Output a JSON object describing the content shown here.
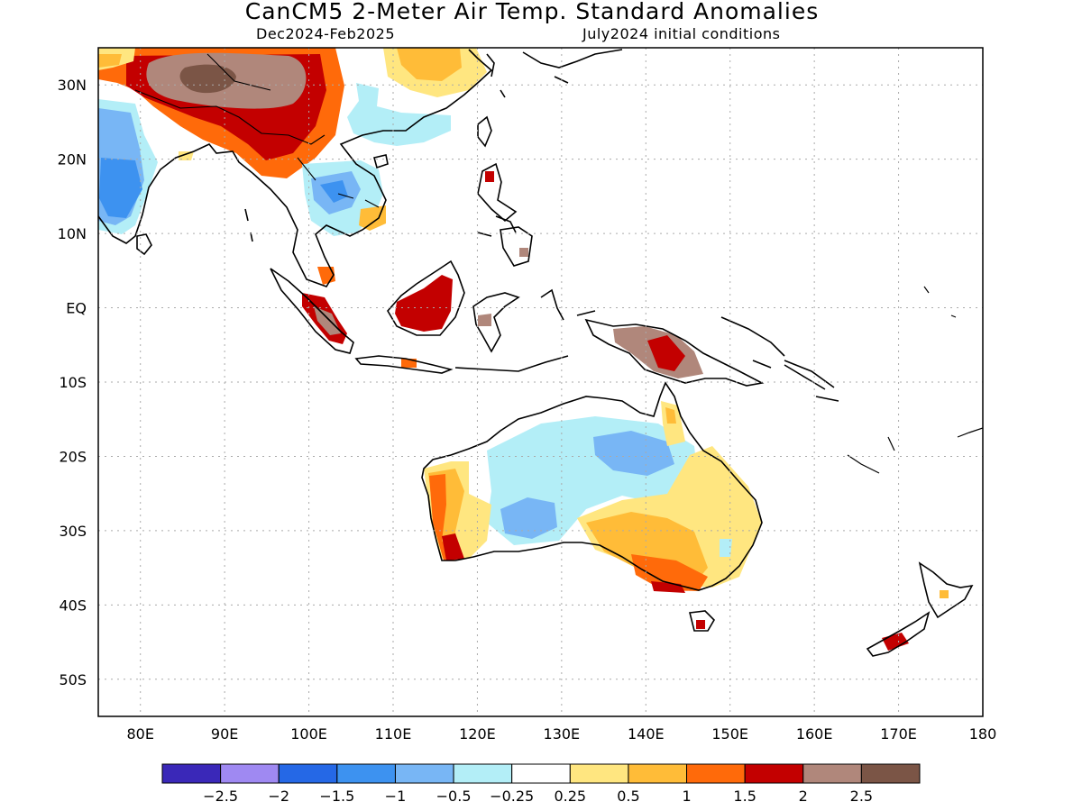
{
  "title": "CanCM5 2-Meter Air Temp. Standard Anomalies",
  "subtitle_left": "Dec2024-Feb2025",
  "subtitle_right": "July2024 initial conditions",
  "map": {
    "lon_range": [
      75,
      180
    ],
    "lat_range": [
      -55,
      35
    ],
    "lon_ticks": [
      {
        "v": 80,
        "label": "80E"
      },
      {
        "v": 90,
        "label": "90E"
      },
      {
        "v": 100,
        "label": "100E"
      },
      {
        "v": 110,
        "label": "110E"
      },
      {
        "v": 120,
        "label": "120E"
      },
      {
        "v": 130,
        "label": "130E"
      },
      {
        "v": 140,
        "label": "140E"
      },
      {
        "v": 150,
        "label": "150E"
      },
      {
        "v": 160,
        "label": "160E"
      },
      {
        "v": 170,
        "label": "170E"
      },
      {
        "v": 180,
        "label": "180"
      }
    ],
    "lat_ticks": [
      {
        "v": 30,
        "label": "30N"
      },
      {
        "v": 20,
        "label": "20N"
      },
      {
        "v": 10,
        "label": "10N"
      },
      {
        "v": 0,
        "label": "EQ"
      },
      {
        "v": -10,
        "label": "10S"
      },
      {
        "v": -20,
        "label": "20S"
      },
      {
        "v": -30,
        "label": "30S"
      },
      {
        "v": -40,
        "label": "40S"
      },
      {
        "v": -50,
        "label": "50S"
      }
    ],
    "grid": "dotted"
  },
  "colorbar": {
    "colors": [
      "#3a28b8",
      "#9f89f2",
      "#2568e6",
      "#3d92f0",
      "#78b6f5",
      "#b3eef7",
      "#ffffff",
      "#ffe680",
      "#ffbc38",
      "#ff6a0a",
      "#c30000",
      "#b0877b",
      "#7b5546"
    ],
    "labels": [
      "-2.5",
      "-2",
      "-1.5",
      "-1",
      "-0.5",
      "-0.25",
      "0.25",
      "0.5",
      "1",
      "1.5",
      "2",
      "2.5"
    ]
  }
}
